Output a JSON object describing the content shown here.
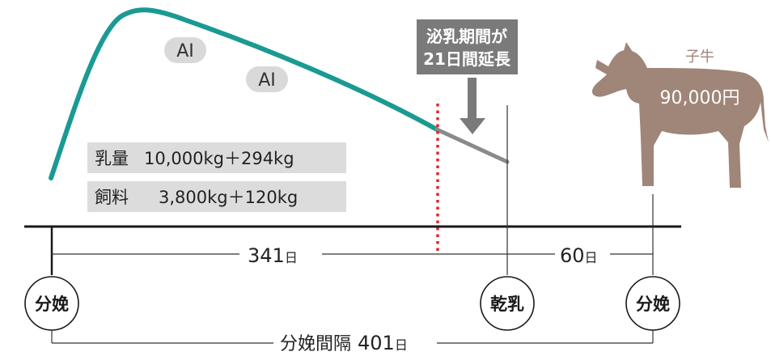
{
  "callout": {
    "line1": "泌乳期間が",
    "line2": "21日間延長"
  },
  "ai_badges": [
    {
      "label": "AI"
    },
    {
      "label": "AI"
    }
  ],
  "yields": {
    "milk": {
      "label": "乳量",
      "value": "10,000kg＋294kg"
    },
    "feed": {
      "label": "飼料",
      "value": "3,800kg＋120kg"
    }
  },
  "calf": {
    "label": "子牛",
    "price": "90,000円"
  },
  "intervals": {
    "lactation": {
      "value": "341",
      "unit": "日"
    },
    "dry": {
      "value": "60",
      "unit": "日"
    },
    "calving_interval": {
      "label": "分娩間隔",
      "value": "401",
      "unit": "日"
    }
  },
  "events": {
    "calving_start": "分娩",
    "dry_off": "乾乳",
    "calving_end": "分娩"
  },
  "colors": {
    "lactation_curve": "#1a9a93",
    "extension_curve": "#8a8a8a",
    "callout_bg": "#7a7a7a",
    "dry_off_marker": "#e0262e",
    "calf_body": "#a08579",
    "yield_box_bg": "#dcdcdc",
    "ai_badge_bg": "#d9d9d9"
  }
}
